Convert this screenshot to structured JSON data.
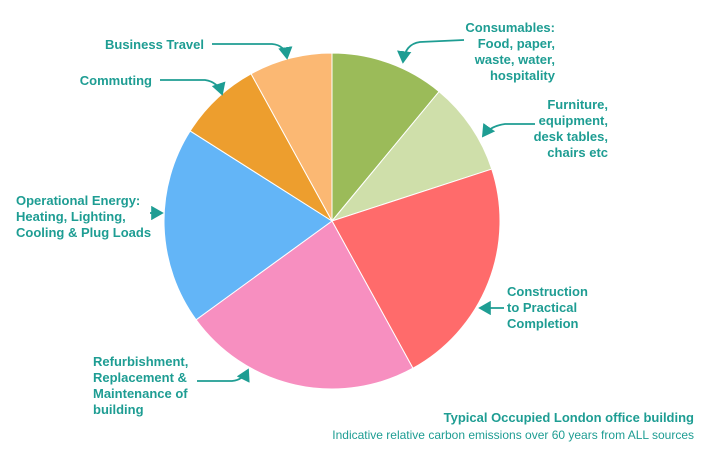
{
  "chart_data": {
    "type": "pie",
    "title": "Typical Occupied London office building",
    "subtitle": "Indicative relative carbon emissions over 60 years from ALL sources",
    "slices": [
      {
        "label": "Consumables:\nFood, paper,\nwaste, water,\nhospitality",
        "value": 11,
        "color": "#9bbb59"
      },
      {
        "label": "Furniture,\nequipment,\ndesk tables,\nchairs etc",
        "value": 9,
        "color": "#cfdfaa"
      },
      {
        "label": "Construction\nto Practical\nCompletion",
        "value": 22,
        "color": "#ff6b6b"
      },
      {
        "label": "Refurbishment,\nReplacement &\nMaintenance of\nbuilding",
        "value": 23,
        "color": "#f78fc0"
      },
      {
        "label": "Operational Energy:\nHeating, Lighting,\nCooling & Plug Loads",
        "value": 19,
        "color": "#63b5f7"
      },
      {
        "label": "Commuting",
        "value": 8,
        "color": "#ed9e2e"
      },
      {
        "label": "Business Travel",
        "value": 8,
        "color": "#fbb873"
      }
    ],
    "legend": "none",
    "accent_color": "#1e9d93"
  }
}
